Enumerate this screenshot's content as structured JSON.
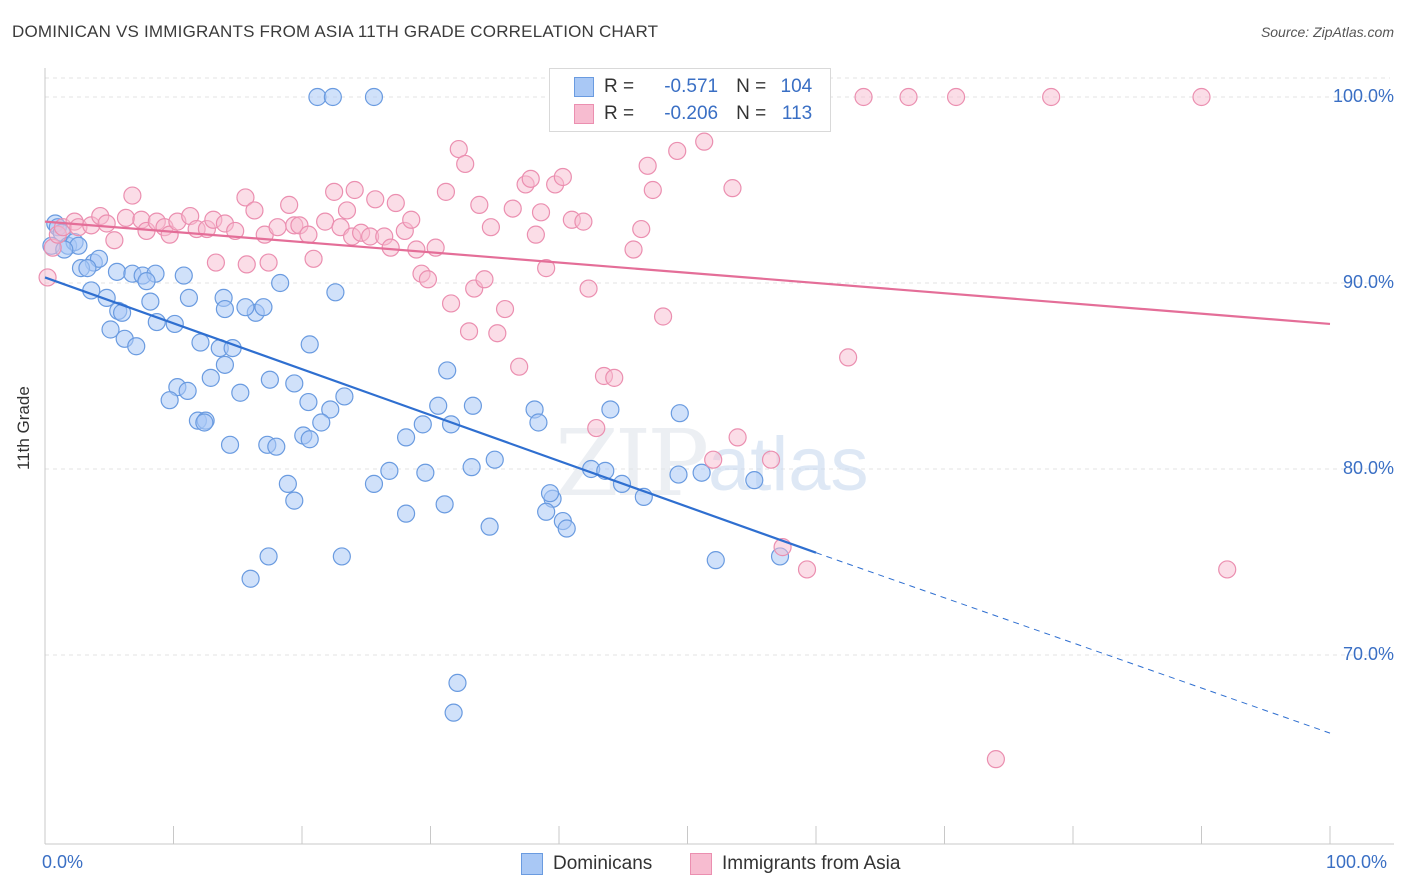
{
  "title": "DOMINICAN VS IMMIGRANTS FROM ASIA 11TH GRADE CORRELATION CHART",
  "source": "Source: ZipAtlas.com",
  "watermark": {
    "zip": "ZIP",
    "atlas": "atlas"
  },
  "legend": {
    "r_label": "R =",
    "n_label": "N =",
    "dominicans": {
      "r": "-0.571",
      "n": "104"
    },
    "asia": {
      "r": "-0.206",
      "n": "113"
    }
  },
  "bottom_legend": {
    "dominicans": "Dominicans",
    "asia": "Immigrants from Asia"
  },
  "colors": {
    "blue_fill": "#a9c8f5",
    "blue_stroke": "#6a9be0",
    "blue_line": "#2f6fd0",
    "pink_fill": "#f7bcd0",
    "pink_stroke": "#eb8fb0",
    "pink_line": "#e46e98",
    "axis_text": "#3a6fc4"
  },
  "chart_data": {
    "type": "scatter",
    "title": "DOMINICAN VS IMMIGRANTS FROM ASIA 11TH GRADE CORRELATION CHART",
    "xlabel": "",
    "ylabel": "11th Grade",
    "xlim": [
      0,
      100
    ],
    "ylim": [
      60,
      101.5
    ],
    "x_tick_labels": [
      "0.0%",
      "100.0%"
    ],
    "y_ticks": [
      70,
      80,
      90,
      100
    ],
    "y_tick_labels": [
      "70.0%",
      "80.0%",
      "90.0%",
      "100.0%"
    ],
    "grid": true,
    "series": [
      {
        "name": "Dominicans",
        "r": -0.571,
        "n": 104,
        "trend": {
          "x1": 0,
          "y1": 90.3,
          "x2": 60,
          "y2": 75.5,
          "x_dash_end": 100,
          "y_dash_end": 65.8
        },
        "points": [
          [
            0.5,
            92.0
          ],
          [
            0.8,
            93.2
          ],
          [
            1.0,
            93.0
          ],
          [
            1.3,
            92.7
          ],
          [
            1.8,
            92.0
          ],
          [
            2.3,
            92.2
          ],
          [
            2.6,
            92.0
          ],
          [
            1.5,
            91.8
          ],
          [
            3.8,
            91.1
          ],
          [
            4.2,
            91.3
          ],
          [
            2.8,
            90.8
          ],
          [
            3.3,
            90.8
          ],
          [
            5.6,
            90.6
          ],
          [
            6.8,
            90.5
          ],
          [
            7.6,
            90.4
          ],
          [
            8.6,
            90.5
          ],
          [
            10.8,
            90.4
          ],
          [
            7.9,
            90.1
          ],
          [
            18.3,
            90.0
          ],
          [
            22.6,
            89.5
          ],
          [
            3.6,
            89.6
          ],
          [
            4.8,
            89.2
          ],
          [
            8.2,
            89.0
          ],
          [
            11.2,
            89.2
          ],
          [
            13.9,
            89.2
          ],
          [
            5.7,
            88.5
          ],
          [
            6.0,
            88.4
          ],
          [
            14.0,
            88.6
          ],
          [
            16.4,
            88.4
          ],
          [
            15.6,
            88.7
          ],
          [
            17.0,
            88.7
          ],
          [
            8.7,
            87.9
          ],
          [
            10.1,
            87.8
          ],
          [
            5.1,
            87.5
          ],
          [
            6.2,
            87.0
          ],
          [
            7.1,
            86.6
          ],
          [
            12.1,
            86.8
          ],
          [
            13.6,
            86.5
          ],
          [
            14.6,
            86.5
          ],
          [
            20.6,
            86.7
          ],
          [
            14.0,
            85.6
          ],
          [
            31.3,
            85.3
          ],
          [
            12.9,
            84.9
          ],
          [
            17.5,
            84.8
          ],
          [
            19.4,
            84.6
          ],
          [
            10.3,
            84.4
          ],
          [
            11.1,
            84.2
          ],
          [
            15.2,
            84.1
          ],
          [
            9.7,
            83.7
          ],
          [
            20.5,
            83.6
          ],
          [
            23.3,
            83.9
          ],
          [
            30.6,
            83.4
          ],
          [
            33.3,
            83.4
          ],
          [
            38.1,
            83.2
          ],
          [
            44.0,
            83.2
          ],
          [
            49.4,
            83.0
          ],
          [
            22.2,
            83.2
          ],
          [
            11.9,
            82.6
          ],
          [
            12.5,
            82.6
          ],
          [
            12.4,
            82.5
          ],
          [
            21.5,
            82.5
          ],
          [
            29.4,
            82.4
          ],
          [
            31.6,
            82.4
          ],
          [
            38.4,
            82.5
          ],
          [
            20.1,
            81.8
          ],
          [
            20.6,
            81.6
          ],
          [
            14.4,
            81.3
          ],
          [
            17.3,
            81.3
          ],
          [
            18.0,
            81.2
          ],
          [
            28.1,
            81.7
          ],
          [
            33.2,
            80.1
          ],
          [
            35.0,
            80.5
          ],
          [
            26.8,
            79.9
          ],
          [
            29.6,
            79.8
          ],
          [
            42.5,
            80.0
          ],
          [
            43.6,
            79.9
          ],
          [
            44.9,
            79.2
          ],
          [
            49.3,
            79.7
          ],
          [
            51.1,
            79.8
          ],
          [
            55.2,
            79.4
          ],
          [
            18.9,
            79.2
          ],
          [
            25.6,
            79.2
          ],
          [
            19.4,
            78.3
          ],
          [
            39.5,
            78.4
          ],
          [
            31.1,
            78.1
          ],
          [
            28.1,
            77.6
          ],
          [
            39.3,
            78.7
          ],
          [
            46.6,
            78.5
          ],
          [
            39.0,
            77.7
          ],
          [
            40.3,
            77.2
          ],
          [
            40.6,
            76.8
          ],
          [
            34.6,
            76.9
          ],
          [
            17.4,
            75.3
          ],
          [
            23.1,
            75.3
          ],
          [
            52.2,
            75.1
          ],
          [
            57.2,
            75.3
          ],
          [
            16.0,
            74.1
          ],
          [
            32.1,
            68.5
          ],
          [
            31.8,
            66.9
          ],
          [
            21.2,
            100.0
          ],
          [
            22.4,
            100.0
          ],
          [
            25.6,
            100.0
          ]
        ]
      },
      {
        "name": "Immigrants from Asia",
        "r": -0.206,
        "n": 113,
        "trend": {
          "x1": 0,
          "y1": 93.3,
          "x2": 100,
          "y2": 87.8
        },
        "points": [
          [
            0.2,
            90.3
          ],
          [
            0.6,
            91.9
          ],
          [
            1.0,
            92.6
          ],
          [
            1.4,
            93.0
          ],
          [
            2.3,
            93.3
          ],
          [
            2.6,
            93.0
          ],
          [
            3.6,
            93.1
          ],
          [
            4.3,
            93.6
          ],
          [
            4.8,
            93.2
          ],
          [
            5.4,
            92.3
          ],
          [
            6.3,
            93.5
          ],
          [
            6.8,
            94.7
          ],
          [
            7.5,
            93.4
          ],
          [
            7.9,
            92.8
          ],
          [
            8.7,
            93.3
          ],
          [
            9.3,
            93.0
          ],
          [
            9.7,
            92.6
          ],
          [
            10.3,
            93.3
          ],
          [
            11.3,
            93.6
          ],
          [
            11.8,
            92.9
          ],
          [
            12.6,
            92.9
          ],
          [
            13.1,
            93.4
          ],
          [
            13.3,
            91.1
          ],
          [
            14.0,
            93.2
          ],
          [
            14.8,
            92.8
          ],
          [
            15.6,
            94.6
          ],
          [
            15.7,
            91.0
          ],
          [
            16.3,
            93.9
          ],
          [
            17.1,
            92.6
          ],
          [
            17.4,
            91.1
          ],
          [
            18.1,
            93.0
          ],
          [
            19.0,
            94.2
          ],
          [
            19.4,
            93.1
          ],
          [
            19.8,
            93.1
          ],
          [
            20.5,
            92.6
          ],
          [
            20.9,
            91.3
          ],
          [
            21.8,
            93.3
          ],
          [
            22.5,
            94.9
          ],
          [
            23.0,
            93.0
          ],
          [
            23.5,
            93.9
          ],
          [
            23.9,
            92.5
          ],
          [
            24.1,
            95.0
          ],
          [
            24.6,
            92.7
          ],
          [
            25.3,
            92.5
          ],
          [
            25.7,
            94.5
          ],
          [
            26.4,
            92.5
          ],
          [
            26.9,
            91.9
          ],
          [
            27.3,
            94.3
          ],
          [
            28.0,
            92.8
          ],
          [
            28.5,
            93.4
          ],
          [
            28.9,
            91.8
          ],
          [
            29.3,
            90.5
          ],
          [
            29.8,
            90.2
          ],
          [
            30.4,
            91.9
          ],
          [
            31.2,
            94.9
          ],
          [
            31.6,
            88.9
          ],
          [
            32.2,
            97.2
          ],
          [
            32.7,
            96.4
          ],
          [
            33.0,
            87.4
          ],
          [
            33.4,
            89.7
          ],
          [
            33.8,
            94.2
          ],
          [
            34.2,
            90.2
          ],
          [
            34.7,
            93.0
          ],
          [
            35.2,
            87.3
          ],
          [
            35.8,
            88.6
          ],
          [
            36.4,
            94.0
          ],
          [
            36.9,
            85.5
          ],
          [
            37.4,
            95.3
          ],
          [
            37.8,
            95.6
          ],
          [
            38.2,
            92.6
          ],
          [
            38.6,
            93.8
          ],
          [
            39.0,
            90.8
          ],
          [
            39.7,
            95.3
          ],
          [
            40.3,
            95.7
          ],
          [
            41.0,
            93.4
          ],
          [
            41.9,
            93.3
          ],
          [
            42.3,
            89.7
          ],
          [
            42.9,
            82.2
          ],
          [
            43.5,
            85.0
          ],
          [
            44.3,
            84.9
          ],
          [
            45.8,
            91.8
          ],
          [
            46.4,
            92.9
          ],
          [
            46.9,
            96.3
          ],
          [
            47.3,
            95.0
          ],
          [
            48.1,
            88.2
          ],
          [
            49.2,
            97.1
          ],
          [
            51.3,
            97.6
          ],
          [
            52.0,
            80.5
          ],
          [
            53.5,
            95.1
          ],
          [
            53.9,
            81.7
          ],
          [
            55.5,
            100.0
          ],
          [
            56.5,
            80.5
          ],
          [
            57.4,
            75.8
          ],
          [
            59.3,
            74.6
          ],
          [
            62.5,
            86.0
          ],
          [
            63.7,
            100.0
          ],
          [
            67.2,
            100.0
          ],
          [
            70.9,
            100.0
          ],
          [
            78.3,
            100.0
          ],
          [
            90.0,
            100.0
          ],
          [
            92.0,
            74.6
          ],
          [
            74.0,
            64.4
          ]
        ]
      }
    ]
  }
}
